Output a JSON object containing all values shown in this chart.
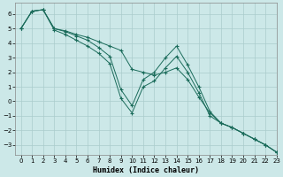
{
  "xlabel": "Humidex (Indice chaleur)",
  "bg_color": "#cce8e8",
  "grid_color": "#aacccc",
  "line_color": "#1a6b5a",
  "xlim": [
    -0.5,
    23
  ],
  "ylim": [
    -3.7,
    6.8
  ],
  "yticks": [
    -3,
    -2,
    -1,
    0,
    1,
    2,
    3,
    4,
    5,
    6
  ],
  "xticks": [
    0,
    1,
    2,
    3,
    4,
    5,
    6,
    7,
    8,
    9,
    10,
    11,
    12,
    13,
    14,
    15,
    16,
    17,
    18,
    19,
    20,
    21,
    22,
    23
  ],
  "series1_x": [
    0,
    1,
    2,
    3,
    4,
    5,
    6,
    7,
    8,
    9,
    10,
    11,
    12,
    13,
    14,
    15,
    16,
    17,
    18,
    19,
    20,
    21,
    22,
    23
  ],
  "series1_y": [
    5.0,
    6.2,
    6.3,
    4.9,
    4.6,
    4.2,
    3.8,
    3.3,
    2.6,
    0.2,
    -0.8,
    1.0,
    1.4,
    2.3,
    3.1,
    2.0,
    0.6,
    -1.0,
    -1.5,
    -1.8,
    -2.2,
    -2.6,
    -3.0,
    -3.5
  ],
  "series2_x": [
    0,
    1,
    2,
    3,
    4,
    5,
    6,
    7,
    8,
    9,
    10,
    11,
    12,
    13,
    14,
    15,
    16,
    17,
    18,
    19,
    20,
    21,
    22,
    23
  ],
  "series2_y": [
    5.0,
    6.2,
    6.3,
    5.0,
    4.8,
    4.5,
    4.2,
    3.7,
    3.1,
    0.8,
    -0.3,
    1.5,
    2.0,
    3.0,
    3.8,
    2.5,
    1.0,
    -0.7,
    -1.5,
    -1.8,
    -2.2,
    -2.6,
    -3.0,
    -3.5
  ],
  "series3_x": [
    0,
    1,
    2,
    3,
    4,
    5,
    6,
    7,
    8,
    9,
    10,
    11,
    12,
    13,
    14,
    15,
    16,
    17,
    18,
    19,
    20,
    21,
    22,
    23
  ],
  "series3_y": [
    5.0,
    6.2,
    6.3,
    5.0,
    4.85,
    4.6,
    4.4,
    4.1,
    3.8,
    3.5,
    2.2,
    2.0,
    1.8,
    2.0,
    2.3,
    1.5,
    0.3,
    -0.8,
    -1.5,
    -1.8,
    -2.2,
    -2.6,
    -3.0,
    -3.5
  ],
  "xlabel_fontsize": 6,
  "tick_fontsize": 5
}
